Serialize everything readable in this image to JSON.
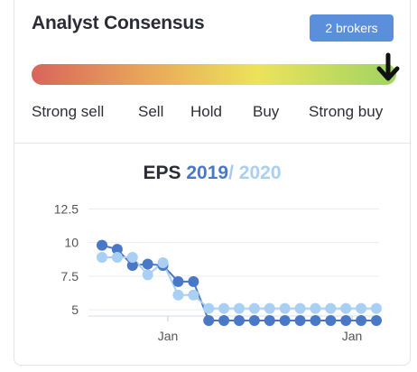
{
  "card": {
    "title": "Analyst Consensus",
    "brokers_badge": "2 brokers",
    "consensus_labels": [
      "Strong sell",
      "Sell",
      "Hold",
      "Buy",
      "Strong buy"
    ],
    "consensus_selected": "Strong buy"
  },
  "eps": {
    "title_prefix": "EPS",
    "year1": "2019",
    "separator": "/",
    "year2": "2020"
  },
  "colors": {
    "series_2019": "#4a78c8",
    "series_2020": "#a9cff5",
    "gradient": [
      "#d9645c",
      "#e8a45a",
      "#ece35a",
      "#9fd461"
    ]
  },
  "chart_data": {
    "type": "line",
    "ylim": [
      4,
      13
    ],
    "yticks": [
      "12.5",
      "10",
      "7.5",
      "5"
    ],
    "ytick_values": [
      12.5,
      10,
      7.5,
      5
    ],
    "xticks": [
      "Jan",
      "Jan"
    ],
    "series": [
      {
        "name": "2019",
        "values": [
          9.8,
          9.5,
          8.3,
          8.4,
          8.3,
          7.1,
          7.1,
          4.2,
          4.2,
          4.2,
          4.2,
          4.2,
          4.2,
          4.2,
          4.2,
          4.2,
          4.2,
          4.2,
          4.2
        ]
      },
      {
        "name": "2020",
        "values": [
          8.9,
          8.9,
          8.9,
          7.6,
          8.5,
          6.1,
          6.1,
          5.1,
          5.1,
          5.1,
          5.1,
          5.1,
          5.1,
          5.1,
          5.1,
          5.1,
          5.1,
          5.1,
          5.1
        ]
      }
    ]
  }
}
